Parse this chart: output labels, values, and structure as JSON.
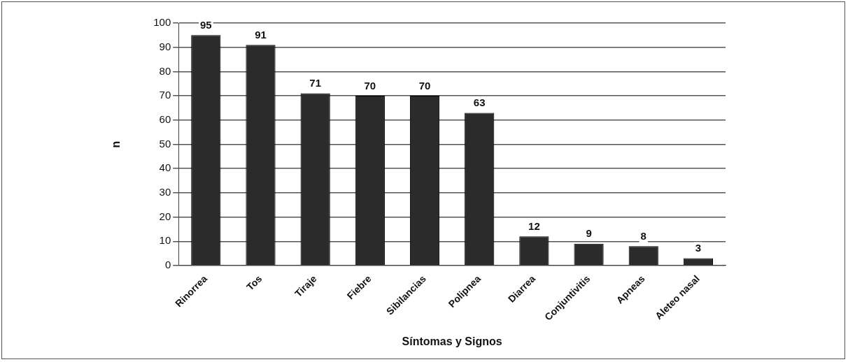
{
  "chart_data": {
    "type": "bar",
    "xlabel": "Síntomas y Signos",
    "ylabel": "n",
    "categories": [
      "Rinorrea",
      "Tos",
      "Tiraje",
      "Fiebre",
      "Sibilancias",
      "Polipnea",
      "Diarrea",
      "Conjuntivitis",
      "Apneas",
      "Aleteo nasal"
    ],
    "values": [
      95,
      91,
      71,
      70,
      70,
      63,
      12,
      9,
      8,
      3
    ],
    "color": "#2b2b2b",
    "ylim": [
      0,
      100
    ],
    "yticks": [
      0,
      10,
      20,
      30,
      40,
      50,
      60,
      70,
      80,
      90,
      100
    ],
    "grid": "y",
    "data_labels": true
  }
}
